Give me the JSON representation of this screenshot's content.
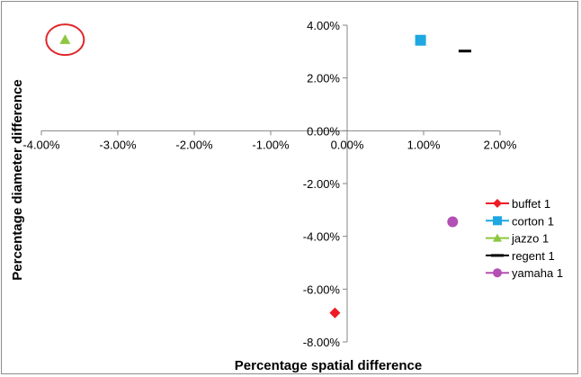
{
  "chart_data": {
    "type": "scatter",
    "xlabel": "Percentage spatial difference",
    "ylabel": "Percentage diameter difference",
    "xlim": [
      -0.04,
      0.02
    ],
    "ylim": [
      -0.08,
      0.04
    ],
    "x_ticks": [
      -0.04,
      -0.03,
      -0.02,
      -0.01,
      0.0,
      0.01,
      0.02
    ],
    "x_tick_labels": [
      "-4.00%",
      "-3.00%",
      "-2.00%",
      "-1.00%",
      "0.00%",
      "1.00%",
      "2.00%"
    ],
    "y_ticks": [
      0.04,
      0.02,
      0.0,
      -0.02,
      -0.04,
      -0.06,
      -0.08
    ],
    "y_tick_labels": [
      "4.00%",
      "2.00%",
      "0.00%",
      "-2.00%",
      "-4.00%",
      "-6.00%",
      "-8.00%"
    ],
    "grid": false,
    "legend_position": "right",
    "series": [
      {
        "name": "buffet 1",
        "marker": "diamond",
        "color": "#ed1c24",
        "x": [
          -0.0016
        ],
        "y": [
          -0.069
        ]
      },
      {
        "name": "corton 1",
        "marker": "square",
        "color": "#1ea7e1",
        "x": [
          0.0096
        ],
        "y": [
          0.0343
        ]
      },
      {
        "name": "jazzo 1",
        "marker": "triangle",
        "color": "#8dc63f",
        "x": [
          -0.0369
        ],
        "y": [
          0.0345
        ]
      },
      {
        "name": "regent 1",
        "marker": "dash",
        "color": "#000000",
        "x": [
          0.0154
        ],
        "y": [
          0.0302
        ]
      },
      {
        "name": "yamaha 1",
        "marker": "circle",
        "color": "#b350b3",
        "x": [
          0.0138
        ],
        "y": [
          -0.0345
        ]
      }
    ],
    "annotations": [
      {
        "type": "circle-highlight",
        "color": "#e0262a",
        "target": "jazzo 1"
      }
    ]
  }
}
